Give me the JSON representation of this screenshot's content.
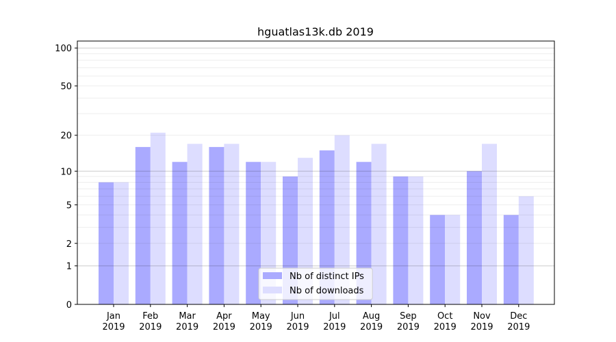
{
  "chart_data": {
    "type": "bar",
    "title": "hguatlas13k.db 2019",
    "xlabel": "",
    "ylabel": "",
    "yscale": "log10(1+y)",
    "ylim": [
      0,
      110
    ],
    "yticks": [
      0,
      1,
      2,
      5,
      10,
      20,
      50,
      100
    ],
    "categories": [
      "Jan\n2019",
      "Feb\n2019",
      "Mar\n2019",
      "Apr\n2019",
      "May\n2019",
      "Jun\n2019",
      "Jul\n2019",
      "Aug\n2019",
      "Sep\n2019",
      "Oct\n2019",
      "Nov\n2019",
      "Dec\n2019"
    ],
    "series": [
      {
        "name": "Nb of distinct IPs",
        "color": "#aaaaff",
        "values": [
          8,
          16,
          12,
          16,
          12,
          9,
          15,
          12,
          9,
          4,
          10,
          4
        ]
      },
      {
        "name": "Nb of downloads",
        "color": "#ddddff",
        "values": [
          8,
          21,
          17,
          17,
          12,
          13,
          20,
          17,
          9,
          4,
          17,
          6
        ]
      }
    ],
    "legend": "bottom-center",
    "grid": true
  }
}
